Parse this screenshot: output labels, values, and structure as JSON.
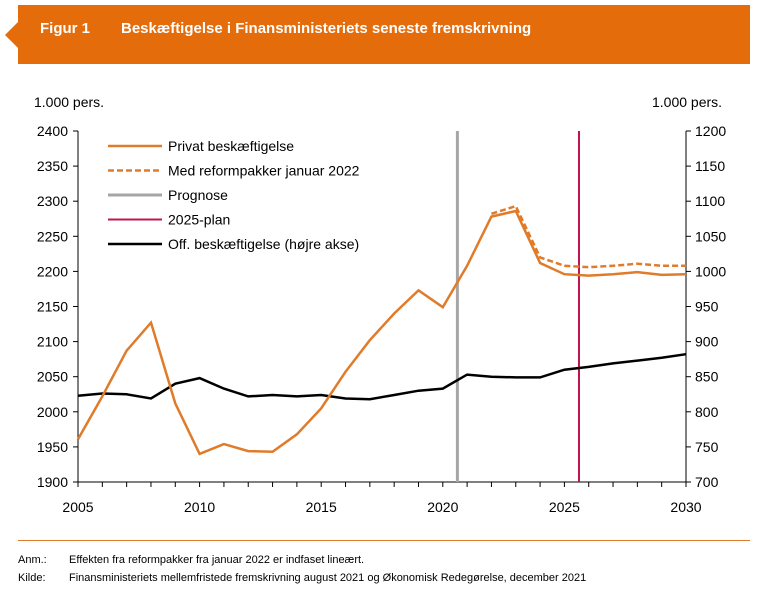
{
  "figure": {
    "label": "Figur 1",
    "title": "Beskæftigelse i Finansministeriets seneste fremskrivning"
  },
  "colors": {
    "banner": "#E46C0A",
    "private": "#E07B2A",
    "reform": "#E07B2A",
    "forecast": "#A6A6A6",
    "plan": "#C0144C",
    "public": "#000000"
  },
  "chart_data": {
    "type": "line",
    "x_range": [
      2005,
      2030
    ],
    "x_ticks": [
      "2005",
      "2010",
      "2015",
      "2020",
      "2025",
      "2030"
    ],
    "y_left": {
      "unit": "1.000 pers.",
      "range": [
        1900,
        2400
      ],
      "ticks": [
        "2400",
        "2350",
        "2300",
        "2250",
        "2200",
        "2150",
        "2100",
        "2050",
        "2000",
        "1950",
        "1900"
      ]
    },
    "y_right": {
      "unit": "1.000 pers.",
      "range": [
        700,
        1200
      ],
      "ticks": [
        "1200",
        "1150",
        "1100",
        "1050",
        "1000",
        "950",
        "900",
        "850",
        "800",
        "750",
        "700"
      ]
    },
    "grid": false,
    "legend_position": "top-left",
    "series": [
      {
        "name": "Privat beskæftigelse",
        "axis": "left",
        "style": "solid",
        "x": [
          2005,
          2006,
          2007,
          2008,
          2009,
          2010,
          2011,
          2012,
          2013,
          2014,
          2015,
          2016,
          2017,
          2018,
          2019,
          2020,
          2021,
          2022,
          2023,
          2024,
          2025,
          2026,
          2027,
          2028,
          2029,
          2030
        ],
        "y": [
          1961,
          2022,
          2087,
          2127,
          2012,
          1940,
          1954,
          1944,
          1943,
          1968,
          2005,
          2057,
          2102,
          2140,
          2173,
          2149,
          2208,
          2278,
          2286,
          2212,
          2196,
          2194,
          2196,
          2199,
          2195,
          2196
        ]
      },
      {
        "name": "Med reformpakker januar 2022",
        "axis": "left",
        "style": "dashed",
        "x": [
          2022,
          2023,
          2024,
          2025,
          2026,
          2027,
          2028,
          2029,
          2030
        ],
        "y": [
          2282,
          2293,
          2220,
          2208,
          2206,
          2208,
          2211,
          2208,
          2208
        ]
      },
      {
        "name": "Prognose",
        "type": "vline",
        "x": 2020.6
      },
      {
        "name": "2025-plan",
        "type": "vline",
        "x": 2025.6
      },
      {
        "name": "Off. beskæftigelse (højre akse)",
        "axis": "right",
        "style": "solid",
        "x": [
          2005,
          2006,
          2007,
          2008,
          2009,
          2010,
          2011,
          2012,
          2013,
          2014,
          2015,
          2016,
          2017,
          2018,
          2019,
          2020,
          2021,
          2022,
          2023,
          2024,
          2025,
          2026,
          2027,
          2028,
          2029,
          2030
        ],
        "y": [
          823,
          826,
          825,
          819,
          840,
          848,
          833,
          822,
          824,
          822,
          824,
          819,
          818,
          824,
          830,
          833,
          853,
          850,
          849,
          849,
          860,
          864,
          869,
          873,
          877,
          882
        ]
      }
    ]
  },
  "notes": {
    "anm_label": "Anm.:",
    "anm_text": "Effekten fra reformpakker fra januar 2022 er indfaset lineært.",
    "kilde_label": "Kilde:",
    "kilde_text": "Finansministeriets mellemfristede fremskrivning august 2021 og Økonomisk Redegørelse, december 2021"
  }
}
